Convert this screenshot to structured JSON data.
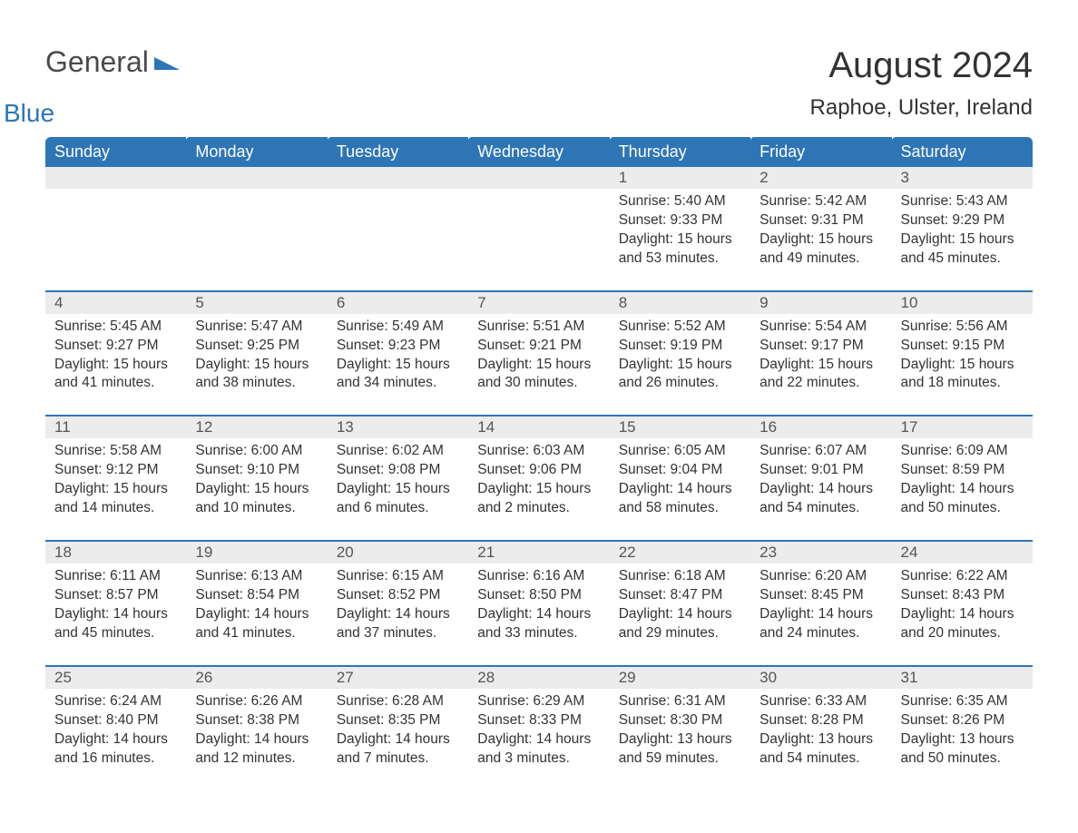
{
  "logo": {
    "text1": "General",
    "text2": "Blue",
    "triangle_color": "#2e75b6"
  },
  "header": {
    "month_title": "August 2024",
    "location": "Raphoe, Ulster, Ireland"
  },
  "style": {
    "header_bg": "#2e75b6",
    "header_text": "#ffffff",
    "daynum_bg": "#ececec",
    "row_border": "#2e75b6",
    "body_bg": "#ffffff",
    "text_color": "#333333",
    "title_fontsize": 40,
    "location_fontsize": 24,
    "weekday_fontsize": 18,
    "cell_fontsize": 15.5
  },
  "weekdays": [
    "Sunday",
    "Monday",
    "Tuesday",
    "Wednesday",
    "Thursday",
    "Friday",
    "Saturday"
  ],
  "weeks": [
    [
      null,
      null,
      null,
      null,
      {
        "n": "1",
        "sunrise": "5:40 AM",
        "sunset": "9:33 PM",
        "dl1": "15 hours",
        "dl2": "and 53 minutes."
      },
      {
        "n": "2",
        "sunrise": "5:42 AM",
        "sunset": "9:31 PM",
        "dl1": "15 hours",
        "dl2": "and 49 minutes."
      },
      {
        "n": "3",
        "sunrise": "5:43 AM",
        "sunset": "9:29 PM",
        "dl1": "15 hours",
        "dl2": "and 45 minutes."
      }
    ],
    [
      {
        "n": "4",
        "sunrise": "5:45 AM",
        "sunset": "9:27 PM",
        "dl1": "15 hours",
        "dl2": "and 41 minutes."
      },
      {
        "n": "5",
        "sunrise": "5:47 AM",
        "sunset": "9:25 PM",
        "dl1": "15 hours",
        "dl2": "and 38 minutes."
      },
      {
        "n": "6",
        "sunrise": "5:49 AM",
        "sunset": "9:23 PM",
        "dl1": "15 hours",
        "dl2": "and 34 minutes."
      },
      {
        "n": "7",
        "sunrise": "5:51 AM",
        "sunset": "9:21 PM",
        "dl1": "15 hours",
        "dl2": "and 30 minutes."
      },
      {
        "n": "8",
        "sunrise": "5:52 AM",
        "sunset": "9:19 PM",
        "dl1": "15 hours",
        "dl2": "and 26 minutes."
      },
      {
        "n": "9",
        "sunrise": "5:54 AM",
        "sunset": "9:17 PM",
        "dl1": "15 hours",
        "dl2": "and 22 minutes."
      },
      {
        "n": "10",
        "sunrise": "5:56 AM",
        "sunset": "9:15 PM",
        "dl1": "15 hours",
        "dl2": "and 18 minutes."
      }
    ],
    [
      {
        "n": "11",
        "sunrise": "5:58 AM",
        "sunset": "9:12 PM",
        "dl1": "15 hours",
        "dl2": "and 14 minutes."
      },
      {
        "n": "12",
        "sunrise": "6:00 AM",
        "sunset": "9:10 PM",
        "dl1": "15 hours",
        "dl2": "and 10 minutes."
      },
      {
        "n": "13",
        "sunrise": "6:02 AM",
        "sunset": "9:08 PM",
        "dl1": "15 hours",
        "dl2": "and 6 minutes."
      },
      {
        "n": "14",
        "sunrise": "6:03 AM",
        "sunset": "9:06 PM",
        "dl1": "15 hours",
        "dl2": "and 2 minutes."
      },
      {
        "n": "15",
        "sunrise": "6:05 AM",
        "sunset": "9:04 PM",
        "dl1": "14 hours",
        "dl2": "and 58 minutes."
      },
      {
        "n": "16",
        "sunrise": "6:07 AM",
        "sunset": "9:01 PM",
        "dl1": "14 hours",
        "dl2": "and 54 minutes."
      },
      {
        "n": "17",
        "sunrise": "6:09 AM",
        "sunset": "8:59 PM",
        "dl1": "14 hours",
        "dl2": "and 50 minutes."
      }
    ],
    [
      {
        "n": "18",
        "sunrise": "6:11 AM",
        "sunset": "8:57 PM",
        "dl1": "14 hours",
        "dl2": "and 45 minutes."
      },
      {
        "n": "19",
        "sunrise": "6:13 AM",
        "sunset": "8:54 PM",
        "dl1": "14 hours",
        "dl2": "and 41 minutes."
      },
      {
        "n": "20",
        "sunrise": "6:15 AM",
        "sunset": "8:52 PM",
        "dl1": "14 hours",
        "dl2": "and 37 minutes."
      },
      {
        "n": "21",
        "sunrise": "6:16 AM",
        "sunset": "8:50 PM",
        "dl1": "14 hours",
        "dl2": "and 33 minutes."
      },
      {
        "n": "22",
        "sunrise": "6:18 AM",
        "sunset": "8:47 PM",
        "dl1": "14 hours",
        "dl2": "and 29 minutes."
      },
      {
        "n": "23",
        "sunrise": "6:20 AM",
        "sunset": "8:45 PM",
        "dl1": "14 hours",
        "dl2": "and 24 minutes."
      },
      {
        "n": "24",
        "sunrise": "6:22 AM",
        "sunset": "8:43 PM",
        "dl1": "14 hours",
        "dl2": "and 20 minutes."
      }
    ],
    [
      {
        "n": "25",
        "sunrise": "6:24 AM",
        "sunset": "8:40 PM",
        "dl1": "14 hours",
        "dl2": "and 16 minutes."
      },
      {
        "n": "26",
        "sunrise": "6:26 AM",
        "sunset": "8:38 PM",
        "dl1": "14 hours",
        "dl2": "and 12 minutes."
      },
      {
        "n": "27",
        "sunrise": "6:28 AM",
        "sunset": "8:35 PM",
        "dl1": "14 hours",
        "dl2": "and 7 minutes."
      },
      {
        "n": "28",
        "sunrise": "6:29 AM",
        "sunset": "8:33 PM",
        "dl1": "14 hours",
        "dl2": "and 3 minutes."
      },
      {
        "n": "29",
        "sunrise": "6:31 AM",
        "sunset": "8:30 PM",
        "dl1": "13 hours",
        "dl2": "and 59 minutes."
      },
      {
        "n": "30",
        "sunrise": "6:33 AM",
        "sunset": "8:28 PM",
        "dl1": "13 hours",
        "dl2": "and 54 minutes."
      },
      {
        "n": "31",
        "sunrise": "6:35 AM",
        "sunset": "8:26 PM",
        "dl1": "13 hours",
        "dl2": "and 50 minutes."
      }
    ]
  ],
  "labels": {
    "sunrise": "Sunrise:",
    "sunset": "Sunset:",
    "daylight": "Daylight:"
  }
}
